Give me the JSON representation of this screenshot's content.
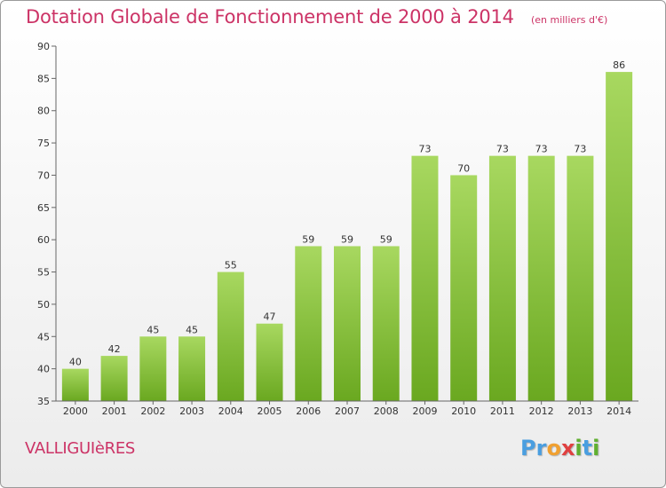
{
  "title": "Dotation Globale de Fonctionnement de 2000 à 2014",
  "subtitle": "(en milliers d'€)",
  "commune": "VALLIGUIèRES",
  "logo": {
    "letters": [
      "P",
      "r",
      "o",
      "x",
      "i",
      "t",
      "i"
    ],
    "colors": [
      "#4a9ee0",
      "#4a9ee0",
      "#f0a030",
      "#e04040",
      "#60b030",
      "#4a9ee0",
      "#60b030"
    ]
  },
  "colors": {
    "bar_light": "#a8d860",
    "bar_dark": "#6aa820",
    "axis": "#666666",
    "text": "#333333"
  },
  "chart_data": {
    "type": "bar",
    "title": "Dotation Globale de Fonctionnement de 2000 à 2014",
    "subtitle": "(en milliers d'€)",
    "xlabel": "",
    "ylabel": "",
    "categories": [
      "2000",
      "2001",
      "2002",
      "2003",
      "2004",
      "2005",
      "2006",
      "2007",
      "2008",
      "2009",
      "2010",
      "2011",
      "2012",
      "2013",
      "2014"
    ],
    "values": [
      40,
      42,
      45,
      45,
      55,
      47,
      59,
      59,
      59,
      73,
      70,
      73,
      73,
      73,
      86
    ],
    "data_labels": [
      "40",
      "42",
      "45",
      "45",
      "55",
      "47",
      "59",
      "59",
      "59",
      "73",
      "70",
      "73",
      "73",
      "73",
      "86"
    ],
    "ylim": [
      35,
      90
    ],
    "yticks": [
      "35",
      "40",
      "45",
      "50",
      "55",
      "60",
      "65",
      "70",
      "75",
      "80",
      "85",
      "90"
    ],
    "grid": false,
    "legend": "none"
  }
}
